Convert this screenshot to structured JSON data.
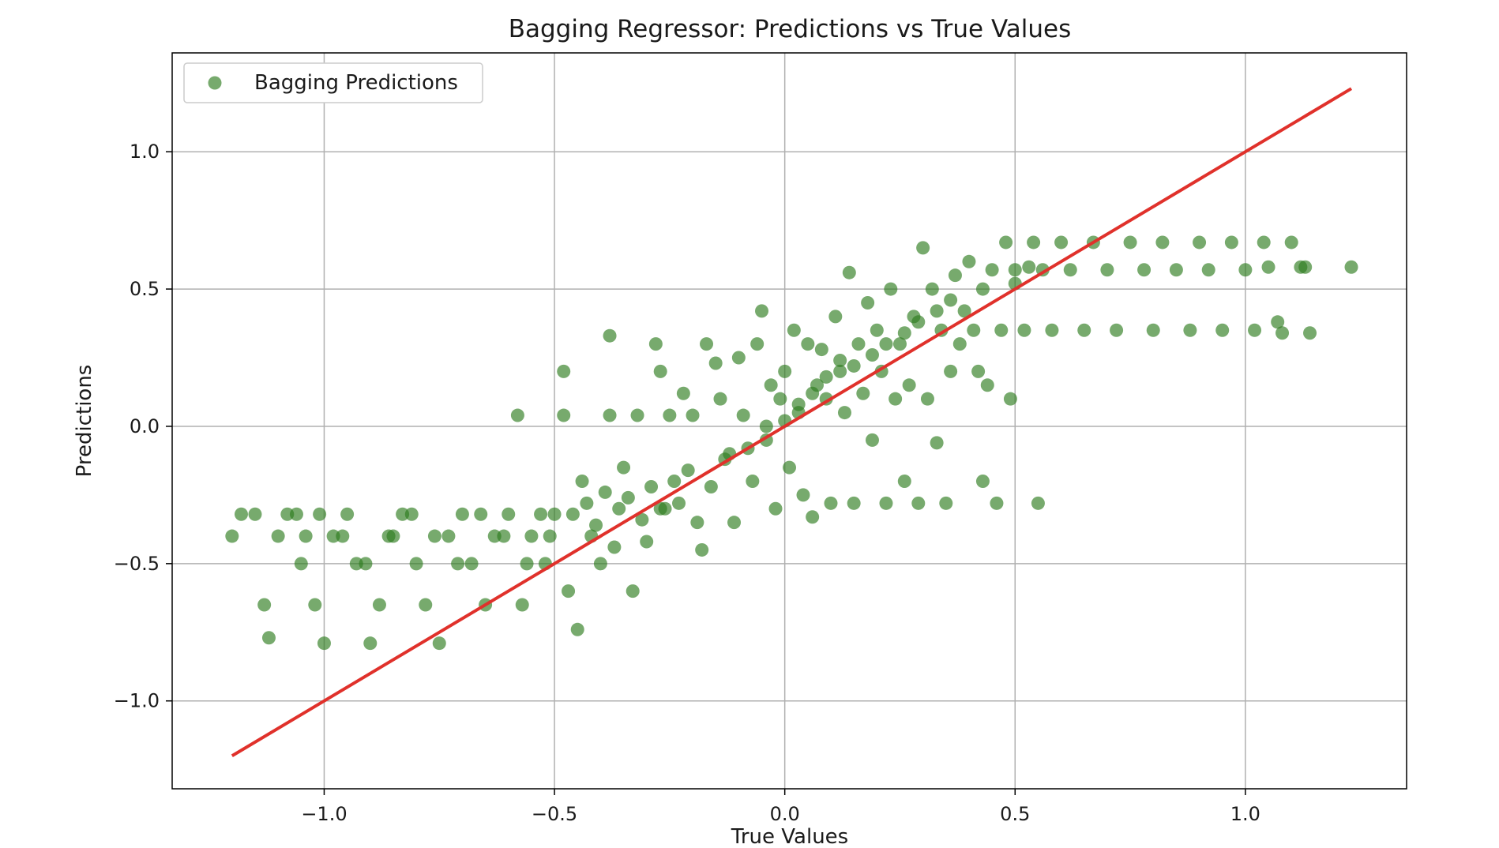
{
  "chart_data": {
    "type": "scatter",
    "title": "Bagging Regressor: Predictions vs True Values",
    "xlabel": "True Values",
    "ylabel": "Predictions",
    "xlim": [
      -1.33,
      1.35
    ],
    "ylim": [
      -1.32,
      1.36
    ],
    "xticks": [
      -1.0,
      -0.5,
      0.0,
      0.5,
      1.0
    ],
    "yticks": [
      -1.0,
      -0.5,
      0.0,
      0.5,
      1.0
    ],
    "xtick_labels": [
      "−1.0",
      "−0.5",
      "0.0",
      "0.5",
      "1.0"
    ],
    "ytick_labels": [
      "−1.0",
      "−0.5",
      "0.0",
      "0.5",
      "1.0"
    ],
    "grid": true,
    "legend_position": "top-left",
    "series": [
      {
        "name": "Bagging Predictions",
        "color": "#2e7d1e",
        "alpha": 0.65,
        "points": [
          [
            -1.2,
            -0.4
          ],
          [
            -1.18,
            -0.32
          ],
          [
            -1.15,
            -0.32
          ],
          [
            -1.13,
            -0.65
          ],
          [
            -1.12,
            -0.77
          ],
          [
            -1.1,
            -0.4
          ],
          [
            -1.08,
            -0.32
          ],
          [
            -1.05,
            -0.5
          ],
          [
            -1.02,
            -0.65
          ],
          [
            -1.0,
            -0.79
          ],
          [
            -0.98,
            -0.4
          ],
          [
            -0.95,
            -0.32
          ],
          [
            -0.93,
            -0.5
          ],
          [
            -0.9,
            -0.79
          ],
          [
            -0.88,
            -0.65
          ],
          [
            -0.85,
            -0.4
          ],
          [
            -0.83,
            -0.32
          ],
          [
            -0.8,
            -0.5
          ],
          [
            -0.78,
            -0.65
          ],
          [
            -0.75,
            -0.79
          ],
          [
            -0.73,
            -0.4
          ],
          [
            -0.7,
            -0.32
          ],
          [
            -0.68,
            -0.5
          ],
          [
            -0.65,
            -0.65
          ],
          [
            -0.63,
            -0.4
          ],
          [
            -0.6,
            -0.32
          ],
          [
            -0.58,
            0.04
          ],
          [
            -0.57,
            -0.65
          ],
          [
            -0.55,
            -0.4
          ],
          [
            -0.52,
            -0.5
          ],
          [
            -0.5,
            -0.32
          ],
          [
            -0.48,
            0.04
          ],
          [
            -0.48,
            0.2
          ],
          [
            -0.47,
            -0.6
          ],
          [
            -0.45,
            -0.74
          ],
          [
            -0.44,
            -0.2
          ],
          [
            -0.42,
            -0.4
          ],
          [
            -0.4,
            -0.5
          ],
          [
            -0.38,
            0.33
          ],
          [
            -0.38,
            0.04
          ],
          [
            -0.36,
            -0.3
          ],
          [
            -0.35,
            -0.15
          ],
          [
            -0.33,
            -0.6
          ],
          [
            -0.32,
            0.04
          ],
          [
            -0.3,
            -0.42
          ],
          [
            -0.28,
            0.3
          ],
          [
            -0.27,
            0.2
          ],
          [
            -0.26,
            -0.3
          ],
          [
            -0.25,
            0.04
          ],
          [
            -0.24,
            -0.2
          ],
          [
            -0.22,
            0.12
          ],
          [
            -0.2,
            0.04
          ],
          [
            -0.19,
            -0.35
          ],
          [
            -0.18,
            -0.45
          ],
          [
            -0.17,
            0.3
          ],
          [
            -0.15,
            0.23
          ],
          [
            -0.14,
            0.1
          ],
          [
            -0.12,
            -0.1
          ],
          [
            -0.11,
            -0.35
          ],
          [
            -0.1,
            0.25
          ],
          [
            -0.09,
            0.04
          ],
          [
            -0.07,
            -0.2
          ],
          [
            -0.06,
            0.3
          ],
          [
            -0.05,
            0.42
          ],
          [
            -0.04,
            -0.05
          ],
          [
            -0.03,
            0.15
          ],
          [
            -0.02,
            -0.3
          ],
          [
            -0.01,
            0.1
          ],
          [
            0.0,
            0.2
          ],
          [
            0.01,
            -0.15
          ],
          [
            0.02,
            0.35
          ],
          [
            0.03,
            0.05
          ],
          [
            0.04,
            -0.25
          ],
          [
            0.05,
            0.3
          ],
          [
            0.06,
            -0.33
          ],
          [
            0.07,
            0.15
          ],
          [
            0.08,
            0.28
          ],
          [
            0.09,
            0.1
          ],
          [
            0.1,
            -0.28
          ],
          [
            0.11,
            0.4
          ],
          [
            0.12,
            0.2
          ],
          [
            0.13,
            0.05
          ],
          [
            0.14,
            0.56
          ],
          [
            0.15,
            -0.28
          ],
          [
            0.16,
            0.3
          ],
          [
            0.17,
            0.12
          ],
          [
            0.18,
            0.45
          ],
          [
            0.19,
            -0.05
          ],
          [
            0.2,
            0.35
          ],
          [
            0.21,
            0.2
          ],
          [
            0.22,
            -0.28
          ],
          [
            0.23,
            0.5
          ],
          [
            0.24,
            0.1
          ],
          [
            0.25,
            0.3
          ],
          [
            0.26,
            -0.2
          ],
          [
            0.27,
            0.15
          ],
          [
            0.28,
            0.4
          ],
          [
            0.29,
            -0.28
          ],
          [
            0.3,
            0.65
          ],
          [
            0.31,
            0.1
          ],
          [
            0.32,
            0.5
          ],
          [
            0.33,
            -0.06
          ],
          [
            0.34,
            0.35
          ],
          [
            0.35,
            -0.28
          ],
          [
            0.36,
            0.2
          ],
          [
            0.37,
            0.55
          ],
          [
            0.38,
            0.3
          ],
          [
            0.4,
            0.6
          ],
          [
            0.41,
            0.35
          ],
          [
            0.42,
            0.2
          ],
          [
            0.43,
            -0.2
          ],
          [
            0.44,
            0.15
          ],
          [
            0.45,
            0.57
          ],
          [
            0.46,
            -0.28
          ],
          [
            0.47,
            0.35
          ],
          [
            0.48,
            0.67
          ],
          [
            0.49,
            0.1
          ],
          [
            0.5,
            0.57
          ],
          [
            0.52,
            0.35
          ],
          [
            0.54,
            0.67
          ],
          [
            0.55,
            -0.28
          ],
          [
            0.56,
            0.57
          ],
          [
            0.58,
            0.35
          ],
          [
            0.6,
            0.67
          ],
          [
            0.62,
            0.57
          ],
          [
            0.65,
            0.35
          ],
          [
            0.67,
            0.67
          ],
          [
            0.7,
            0.57
          ],
          [
            0.72,
            0.35
          ],
          [
            0.75,
            0.67
          ],
          [
            0.78,
            0.57
          ],
          [
            0.8,
            0.35
          ],
          [
            0.82,
            0.67
          ],
          [
            0.85,
            0.57
          ],
          [
            0.88,
            0.35
          ],
          [
            0.9,
            0.67
          ],
          [
            0.92,
            0.57
          ],
          [
            0.95,
            0.35
          ],
          [
            0.97,
            0.67
          ],
          [
            1.0,
            0.57
          ],
          [
            1.02,
            0.35
          ],
          [
            1.04,
            0.67
          ],
          [
            1.05,
            0.58
          ],
          [
            1.07,
            0.38
          ],
          [
            1.08,
            0.34
          ],
          [
            1.1,
            0.67
          ],
          [
            1.12,
            0.58
          ],
          [
            1.13,
            0.58
          ],
          [
            1.14,
            0.34
          ],
          [
            1.23,
            0.58
          ],
          [
            -1.06,
            -0.32
          ],
          [
            -1.04,
            -0.4
          ],
          [
            -1.01,
            -0.32
          ],
          [
            -0.96,
            -0.4
          ],
          [
            -0.91,
            -0.5
          ],
          [
            -0.86,
            -0.4
          ],
          [
            -0.81,
            -0.32
          ],
          [
            -0.76,
            -0.4
          ],
          [
            -0.71,
            -0.5
          ],
          [
            -0.66,
            -0.32
          ],
          [
            -0.61,
            -0.4
          ],
          [
            -0.56,
            -0.5
          ],
          [
            -0.53,
            -0.32
          ],
          [
            -0.51,
            -0.4
          ],
          [
            -0.46,
            -0.32
          ],
          [
            -0.43,
            -0.28
          ],
          [
            -0.41,
            -0.36
          ],
          [
            -0.39,
            -0.24
          ],
          [
            -0.37,
            -0.44
          ],
          [
            -0.34,
            -0.26
          ],
          [
            -0.31,
            -0.34
          ],
          [
            -0.29,
            -0.22
          ],
          [
            -0.27,
            -0.3
          ],
          [
            -0.23,
            -0.28
          ],
          [
            -0.21,
            -0.16
          ],
          [
            -0.16,
            -0.22
          ],
          [
            -0.13,
            -0.12
          ],
          [
            -0.08,
            -0.08
          ],
          [
            -0.04,
            0.0
          ],
          [
            0.0,
            0.02
          ],
          [
            0.03,
            0.08
          ],
          [
            0.06,
            0.12
          ],
          [
            0.09,
            0.18
          ],
          [
            0.12,
            0.24
          ],
          [
            0.15,
            0.22
          ],
          [
            0.19,
            0.26
          ],
          [
            0.22,
            0.3
          ],
          [
            0.26,
            0.34
          ],
          [
            0.29,
            0.38
          ],
          [
            0.33,
            0.42
          ],
          [
            0.36,
            0.46
          ],
          [
            0.39,
            0.42
          ],
          [
            0.43,
            0.5
          ],
          [
            0.5,
            0.52
          ],
          [
            0.53,
            0.58
          ]
        ]
      }
    ],
    "reference_line": {
      "x": [
        -1.2,
        1.23
      ],
      "y": [
        -1.2,
        1.23
      ],
      "color": "#e0312b"
    }
  }
}
